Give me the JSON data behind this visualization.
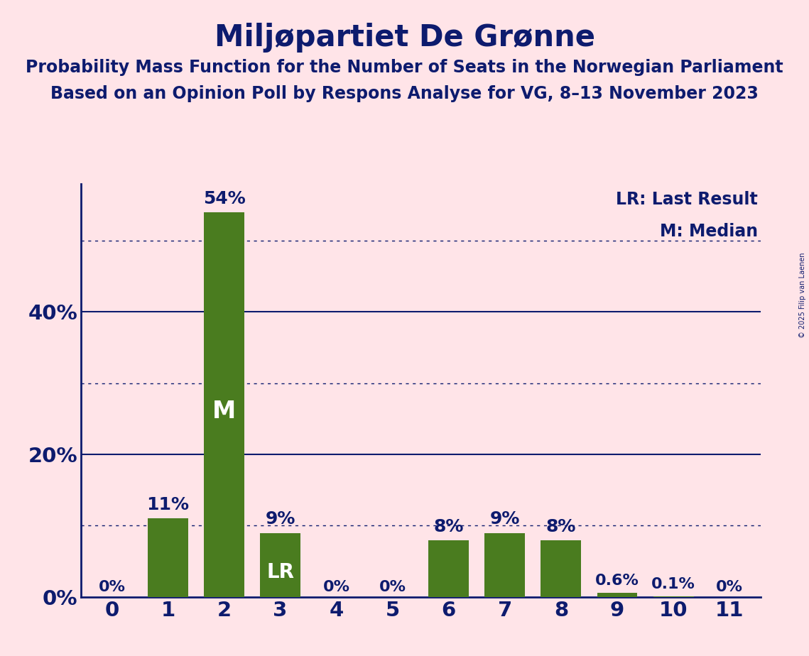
{
  "title": "Miljøpartiet De Grønne",
  "subtitle1": "Probability Mass Function for the Number of Seats in the Norwegian Parliament",
  "subtitle2": "Based on an Opinion Poll by Respons Analyse for VG, 8–13 November 2023",
  "copyright": "© 2025 Filip van Laenen",
  "categories": [
    0,
    1,
    2,
    3,
    4,
    5,
    6,
    7,
    8,
    9,
    10,
    11
  ],
  "values": [
    0.0,
    11.0,
    54.0,
    9.0,
    0.0,
    0.0,
    8.0,
    9.0,
    8.0,
    0.6,
    0.1,
    0.0
  ],
  "bar_color": "#4a7c1f",
  "background_color": "#FFE4E8",
  "text_color": "#0d1b6e",
  "title_fontsize": 30,
  "subtitle_fontsize": 17,
  "tick_fontsize": 21,
  "bar_label_fontsize": 18,
  "legend_fontsize": 17,
  "ytick_labels": [
    "0%",
    "20%",
    "40%"
  ],
  "ytick_values": [
    0,
    20,
    40
  ],
  "solid_gridlines": [
    20,
    40
  ],
  "dotted_gridlines": [
    10,
    30,
    50
  ],
  "median_bar": 2,
  "lr_bar": 3,
  "legend_text_lr": "LR: Last Result",
  "legend_text_m": "M: Median",
  "bar_labels": [
    "0%",
    "11%",
    "54%",
    "9%",
    "0%",
    "0%",
    "8%",
    "9%",
    "8%",
    "0.6%",
    "0.1%",
    "0%"
  ],
  "ylim": [
    0,
    58
  ],
  "xlim": [
    -0.55,
    11.55
  ]
}
